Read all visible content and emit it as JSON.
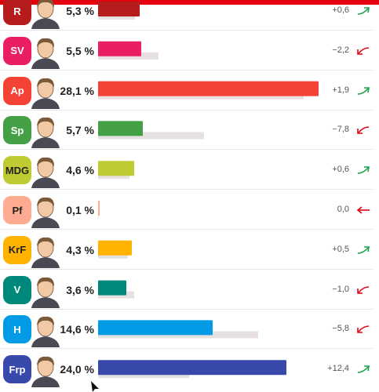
{
  "colors": {
    "accent": "#e3000f",
    "up": "#1aa34a",
    "down": "#e3000f",
    "neutral": "#e3000f",
    "previous_bar": "#e6e0e0"
  },
  "chart_data": {
    "type": "bar",
    "orientation": "horizontal",
    "categories": [
      "R",
      "SV",
      "Ap",
      "Sp",
      "MDG",
      "Pf",
      "KrF",
      "V",
      "H",
      "Frp"
    ],
    "series": [
      {
        "values": [
          5.3,
          5.5,
          28.1,
          5.7,
          4.6,
          0.1,
          4.3,
          3.6,
          14.6,
          24.0
        ]
      },
      {
        "values": [
          4.7,
          7.7,
          26.2,
          13.5,
          4.0,
          0.1,
          3.8,
          4.6,
          20.4,
          11.6
        ]
      }
    ],
    "value_labels": [
      "5,3 %",
      "5,5 %",
      "28,1 %",
      "5,7 %",
      "4,6 %",
      "0,1 %",
      "4,3 %",
      "3,6 %",
      "14,6 %",
      "24,0 %"
    ],
    "change_labels": [
      "+0,6",
      "−2,2",
      "+1,9",
      "−7,8",
      "+0,6",
      "0,0",
      "+0,5",
      "−1,0",
      "−5,8",
      "+12,4"
    ],
    "change_direction": [
      "up",
      "down",
      "up",
      "down",
      "up",
      "flat",
      "up",
      "down",
      "down",
      "up"
    ],
    "bar_colors": [
      "#b71c1c",
      "#e91e63",
      "#f44336",
      "#43a047",
      "#c0ca33",
      "#ffab91",
      "#ffb300",
      "#00897b",
      "#039be5",
      "#3949ab"
    ],
    "badge_colors": [
      "#b71c1c",
      "#e91e63",
      "#f44336",
      "#43a047",
      "#c0ca33",
      "#ffab91",
      "#ffb300",
      "#00897b",
      "#039be5",
      "#3949ab"
    ],
    "badge_text_colors": [
      "#ffffff",
      "#ffffff",
      "#ffffff",
      "#ffffff",
      "#222222",
      "#222222",
      "#222222",
      "#ffffff",
      "#ffffff",
      "#ffffff"
    ],
    "xlim": [
      0,
      30
    ],
    "grid": false,
    "legend": "none"
  }
}
